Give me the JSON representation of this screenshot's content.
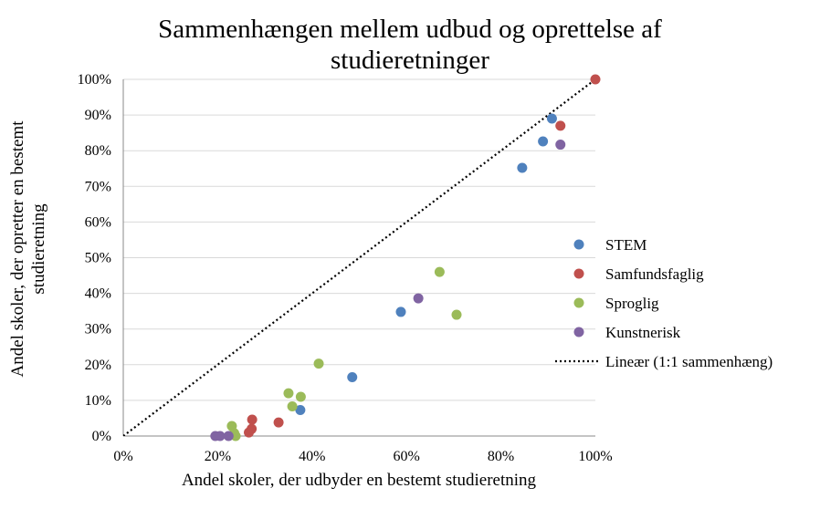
{
  "chart_data": {
    "type": "scatter",
    "title_lines": [
      "Sammenhængen mellem udbud og oprettelse af",
      "studieretninger"
    ],
    "xlabel": "Andel skoler, der udbyder en bestemt studieretning",
    "ylabel_lines": [
      "Andel skoler, der opretter en bestemt",
      "studieretning"
    ],
    "xlim": [
      0,
      100
    ],
    "ylim": [
      0,
      100
    ],
    "x_ticks": [
      "0%",
      "20%",
      "40%",
      "60%",
      "80%",
      "100%"
    ],
    "y_ticks": [
      "0%",
      "10%",
      "20%",
      "30%",
      "40%",
      "50%",
      "60%",
      "70%",
      "80%",
      "90%",
      "100%"
    ],
    "grid": "horizontal",
    "legend_position": "right",
    "series": [
      {
        "name": "STEM",
        "color": "#4F81BD",
        "points": [
          [
            37.5,
            7.3
          ],
          [
            48.5,
            16.5
          ],
          [
            58.8,
            34.8
          ],
          [
            84.5,
            75.2
          ],
          [
            88.9,
            82.6
          ],
          [
            90.8,
            89.0
          ]
        ]
      },
      {
        "name": "Samfundsfaglig",
        "color": "#C0504D",
        "points": [
          [
            26.6,
            1.0
          ],
          [
            27.2,
            2.0
          ],
          [
            27.3,
            4.6
          ],
          [
            32.9,
            3.8
          ],
          [
            92.6,
            87.0
          ],
          [
            100.0,
            100.0
          ]
        ]
      },
      {
        "name": "Sproglig",
        "color": "#9BBB59",
        "points": [
          [
            23.0,
            2.8
          ],
          [
            23.5,
            0.8
          ],
          [
            23.8,
            0.0
          ],
          [
            35.0,
            12.0
          ],
          [
            35.8,
            8.3
          ],
          [
            37.6,
            11.0
          ],
          [
            41.4,
            20.3
          ],
          [
            67.0,
            46.0
          ],
          [
            70.6,
            34.0
          ]
        ]
      },
      {
        "name": "Kunstnerisk",
        "color": "#8064A2",
        "points": [
          [
            19.5,
            0.0
          ],
          [
            20.5,
            0.0
          ],
          [
            22.3,
            0.0
          ],
          [
            62.5,
            38.6
          ],
          [
            92.6,
            81.7
          ]
        ]
      }
    ],
    "trendline": {
      "name": "Lineær (1:1 sammenhæng)",
      "style": "dotted",
      "from": [
        0,
        0
      ],
      "to": [
        100,
        100
      ]
    }
  }
}
